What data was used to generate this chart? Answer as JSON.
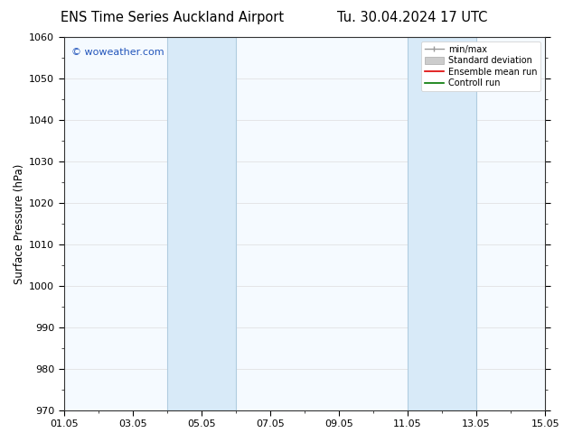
{
  "title_left": "ENS Time Series Auckland Airport",
  "title_right": "Tu. 30.04.2024 17 UTC",
  "ylabel": "Surface Pressure (hPa)",
  "ylim": [
    970,
    1060
  ],
  "yticks": [
    970,
    980,
    990,
    1000,
    1010,
    1020,
    1030,
    1040,
    1050,
    1060
  ],
  "xlim": [
    0,
    14
  ],
  "xtick_positions": [
    0,
    2,
    4,
    6,
    8,
    10,
    12,
    14
  ],
  "xtick_labels": [
    "01.05",
    "03.05",
    "05.05",
    "07.05",
    "09.05",
    "11.05",
    "13.05",
    "15.05"
  ],
  "shaded_bands": [
    {
      "xmin": 3.0,
      "xmax": 5.0
    },
    {
      "xmin": 10.0,
      "xmax": 12.0
    }
  ],
  "band_color": "#d8eaf8",
  "band_edge_color": "#b0cce0",
  "watermark": "© woweather.com",
  "watermark_color": "#2255bb",
  "legend_entries": [
    {
      "label": "min/max",
      "color": "#999999",
      "lw": 1.0,
      "type": "line_with_caps"
    },
    {
      "label": "Standard deviation",
      "color": "#cccccc",
      "lw": 6,
      "type": "band"
    },
    {
      "label": "Ensemble mean run",
      "color": "#dd0000",
      "lw": 1.2,
      "type": "line"
    },
    {
      "label": "Controll run",
      "color": "#007700",
      "lw": 1.2,
      "type": "line"
    }
  ],
  "bg_color": "#ffffff",
  "plot_bg_color": "#f5faff",
  "grid_color": "#dddddd",
  "title_fontsize": 10.5,
  "axis_fontsize": 8.5,
  "tick_fontsize": 8,
  "watermark_fontsize": 8
}
